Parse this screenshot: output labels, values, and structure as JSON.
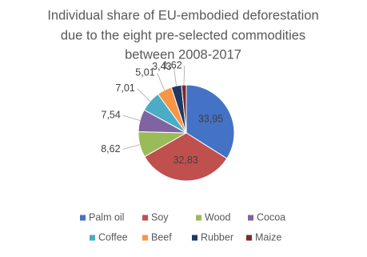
{
  "chart_data": {
    "type": "pie",
    "title": [
      "Individual share of EU-embodied deforestation",
      "due to the eight pre-selected commodities",
      "between 2008-2017"
    ],
    "categories": [
      "Palm oil",
      "Soy",
      "Wood",
      "Cocoa",
      "Coffee",
      "Beef",
      "Rubber",
      "Maize"
    ],
    "values": [
      33.95,
      32.83,
      8.62,
      7.54,
      7.01,
      5.01,
      3.43,
      1.62
    ],
    "value_labels": [
      "33,95",
      "32,83",
      "8,62",
      "7,54",
      "7,01",
      "5,01",
      "3,43",
      "1,62"
    ],
    "colors": [
      "#4472c4",
      "#c0504d",
      "#9bbb59",
      "#8064a2",
      "#4bacc6",
      "#f79646",
      "#1f3864",
      "#7b2c2a"
    ],
    "legend": "bottom"
  }
}
